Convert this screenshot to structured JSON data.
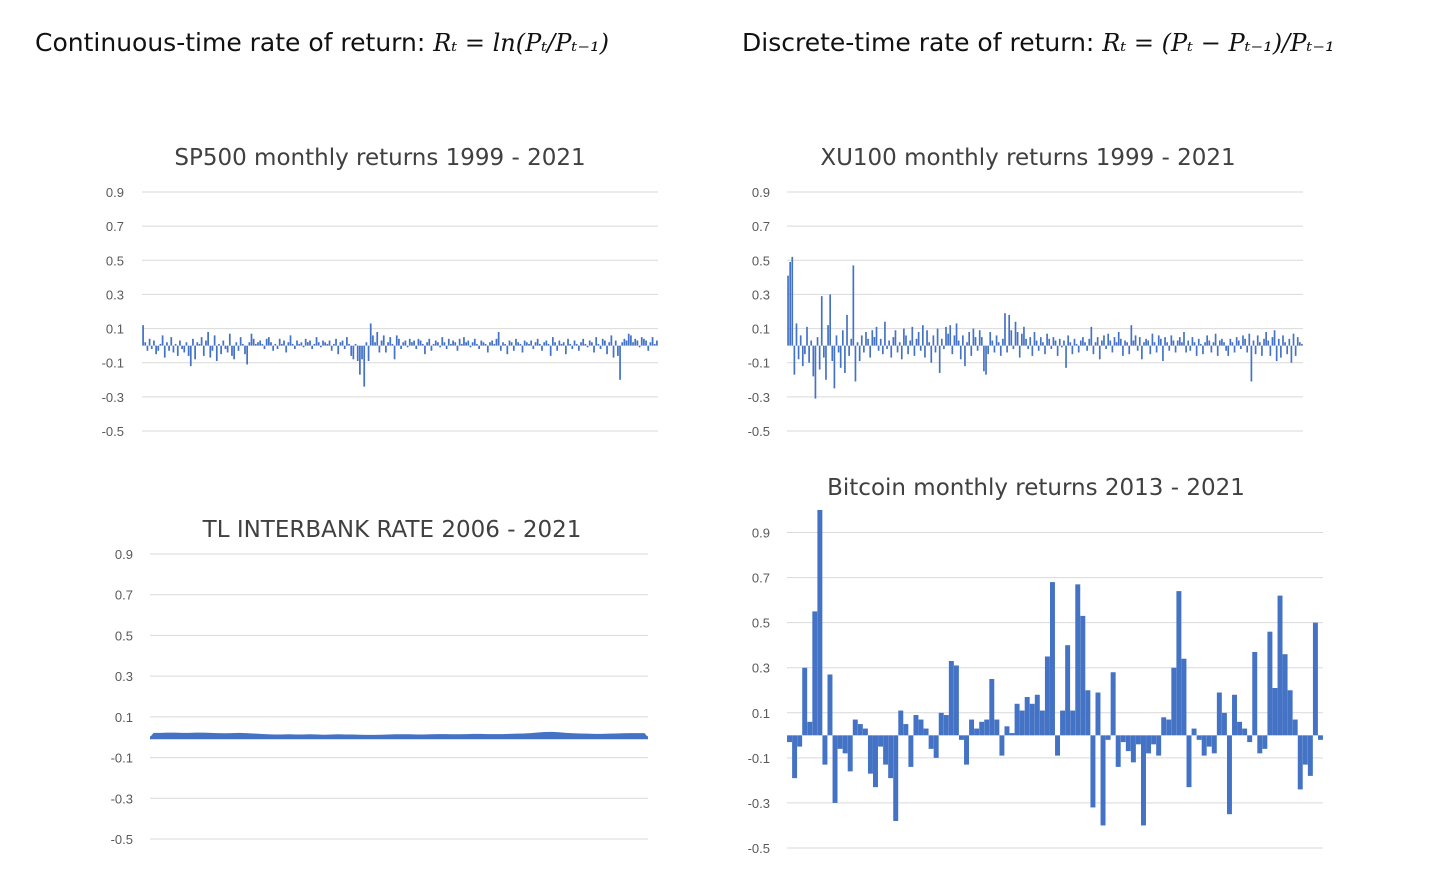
{
  "headings": {
    "left_label": "Continuous-time rate of return:",
    "left_formula": "Rₜ = ln(Pₜ/Pₜ₋₁)",
    "right_label": "Discrete-time rate of return:",
    "right_formula": "Rₜ = (Pₜ − Pₜ₋₁)/Pₜ₋₁"
  },
  "colors": {
    "bar": "#4472c4",
    "grid": "#d9d9d9",
    "title": "#404040",
    "tick": "#595959"
  },
  "chart_data": [
    {
      "id": "sp500",
      "type": "bar",
      "title": "SP500 monthly returns 1999 - 2021",
      "xlabel": "",
      "ylabel": "",
      "ylim": [
        -0.5,
        0.9
      ],
      "yticks": [
        0.9,
        0.7,
        0.5,
        0.3,
        0.1,
        -0.1,
        -0.3,
        -0.5
      ],
      "grid": true,
      "legend": "none",
      "values": [
        0.12,
        0.02,
        -0.03,
        0.04,
        -0.02,
        0.03,
        -0.05,
        -0.03,
        0.01,
        0.06,
        -0.07,
        0.02,
        -0.03,
        0.05,
        -0.04,
        0.01,
        -0.06,
        0.03,
        -0.02,
        -0.04,
        0.02,
        -0.06,
        -0.12,
        0.04,
        -0.08,
        0.02,
        0.01,
        0.05,
        -0.06,
        0.03,
        0.08,
        -0.07,
        -0.03,
        0.06,
        -0.09,
        0.01,
        -0.05,
        0.03,
        -0.02,
        -0.04,
        0.07,
        -0.06,
        -0.08,
        0.02,
        -0.03,
        0.05,
        0.01,
        -0.05,
        -0.11,
        0.02,
        0.07,
        0.04,
        0.01,
        0.02,
        0.03,
        0.01,
        -0.02,
        0.04,
        0.05,
        0.02,
        -0.03,
        0.01,
        -0.02,
        0.04,
        0.01,
        0.03,
        -0.04,
        0.02,
        0.06,
        0.01,
        -0.02,
        0.03,
        0.01,
        0.02,
        -0.01,
        0.04,
        0.02,
        0.03,
        -0.02,
        0.01,
        0.05,
        0.02,
        -0.01,
        0.03,
        0.02,
        0.01,
        0.03,
        -0.03,
        0.01,
        0.04,
        -0.05,
        0.02,
        0.03,
        -0.02,
        0.05,
        0.01,
        -0.06,
        -0.08,
        0.01,
        -0.09,
        -0.17,
        -0.08,
        -0.24,
        0.02,
        -0.09,
        0.13,
        0.06,
        0.02,
        0.08,
        -0.04,
        0.03,
        0.06,
        -0.04,
        0.02,
        0.05,
        0.01,
        -0.08,
        0.06,
        0.04,
        -0.02,
        0.02,
        0.03,
        -0.01,
        0.04,
        0.02,
        0.03,
        -0.02,
        0.04,
        0.03,
        0.01,
        -0.05,
        0.02,
        0.04,
        -0.03,
        0.01,
        0.03,
        0.02,
        -0.01,
        0.05,
        0.02,
        -0.02,
        0.04,
        0.01,
        0.03,
        0.02,
        -0.03,
        0.04,
        0.01,
        0.05,
        0.02,
        0.03,
        -0.01,
        0.02,
        0.04,
        0.01,
        -0.02,
        0.03,
        0.02,
        0.01,
        -0.04,
        0.02,
        0.03,
        0.01,
        0.04,
        0.08,
        -0.03,
        0.02,
        0.01,
        -0.05,
        0.03,
        0.02,
        -0.03,
        0.04,
        0.02,
        0.01,
        -0.04,
        0.03,
        0.02,
        0.01,
        0.03,
        -0.02,
        0.02,
        0.04,
        0.01,
        -0.03,
        0.02,
        0.03,
        0.01,
        -0.06,
        0.05,
        0.02,
        -0.03,
        0.03,
        0.01,
        0.02,
        -0.05,
        0.04,
        0.01,
        -0.02,
        0.03,
        0.01,
        -0.03,
        0.02,
        0.04,
        0.01,
        -0.01,
        0.03,
        0.02,
        -0.04,
        0.05,
        0.01,
        -0.02,
        0.04,
        0.03,
        -0.05,
        0.02,
        0.06,
        -0.07,
        0.03,
        -0.06,
        -0.2,
        0.02,
        0.04,
        0.03,
        0.07,
        0.06,
        0.02,
        0.04,
        0.03,
        -0.01,
        0.05,
        0.04,
        0.03,
        -0.03,
        0.02,
        0.05,
        0.01,
        0.03
      ]
    },
    {
      "id": "xu100",
      "type": "bar",
      "title": "XU100 monthly returns 1999 - 2021",
      "xlabel": "",
      "ylabel": "",
      "ylim": [
        -0.5,
        0.9
      ],
      "yticks": [
        0.9,
        0.7,
        0.5,
        0.3,
        0.1,
        -0.1,
        -0.3,
        -0.5
      ],
      "grid": true,
      "legend": "none",
      "values": [
        0.41,
        0.49,
        0.52,
        -0.17,
        0.13,
        -0.08,
        0.06,
        -0.12,
        -0.05,
        0.11,
        -0.1,
        0.03,
        -0.18,
        -0.31,
        0.05,
        -0.14,
        0.29,
        -0.07,
        -0.2,
        0.12,
        0.3,
        -0.09,
        -0.25,
        0.06,
        -0.04,
        -0.13,
        0.09,
        -0.16,
        0.18,
        -0.06,
        0.04,
        0.47,
        -0.21,
        0.02,
        -0.09,
        0.06,
        -0.04,
        0.08,
        0.04,
        -0.07,
        0.09,
        0.05,
        0.11,
        -0.03,
        0.04,
        -0.05,
        0.14,
        -0.02,
        0.03,
        -0.07,
        0.05,
        0.09,
        -0.04,
        0.02,
        -0.08,
        0.1,
        0.06,
        -0.05,
        0.03,
        0.11,
        -0.06,
        0.04,
        0.08,
        -0.03,
        0.12,
        -0.07,
        0.09,
        0.02,
        -0.1,
        0.06,
        -0.04,
        0.1,
        -0.16,
        0.04,
        -0.02,
        0.11,
        0.07,
        0.12,
        -0.05,
        0.06,
        0.13,
        0.03,
        -0.08,
        0.06,
        -0.12,
        0.02,
        0.08,
        -0.06,
        0.1,
        0.05,
        -0.03,
        0.09,
        0.05,
        -0.15,
        -0.17,
        -0.05,
        0.08,
        0.03,
        -0.04,
        0.06,
        0.02,
        -0.06,
        0.04,
        0.19,
        -0.04,
        0.18,
        0.09,
        -0.02,
        0.14,
        0.08,
        -0.07,
        0.07,
        0.11,
        0.04,
        -0.02,
        0.05,
        -0.06,
        0.08,
        0.03,
        -0.03,
        0.05,
        0.02,
        -0.05,
        0.07,
        0.04,
        -0.02,
        0.05,
        0.03,
        -0.06,
        0.04,
        -0.01,
        0.03,
        -0.13,
        0.06,
        0.02,
        -0.05,
        0.04,
        0.01,
        -0.04,
        0.03,
        0.05,
        0.02,
        -0.03,
        0.04,
        0.11,
        -0.05,
        0.02,
        0.05,
        -0.08,
        0.03,
        0.06,
        -0.02,
        0.07,
        0.03,
        -0.04,
        0.05,
        0.02,
        0.08,
        0.04,
        -0.06,
        0.03,
        0.02,
        -0.05,
        0.12,
        0.03,
        0.06,
        -0.03,
        0.05,
        -0.08,
        0.02,
        0.04,
        0.03,
        -0.05,
        0.07,
        0.02,
        -0.04,
        0.06,
        0.04,
        -0.09,
        0.05,
        0.02,
        -0.03,
        0.06,
        0.03,
        -0.04,
        0.03,
        0.05,
        0.02,
        0.08,
        -0.04,
        0.03,
        -0.03,
        0.05,
        0.02,
        -0.06,
        0.04,
        0.01,
        -0.05,
        0.02,
        0.06,
        0.03,
        -0.04,
        0.02,
        0.07,
        -0.06,
        0.03,
        0.04,
        0.02,
        -0.03,
        -0.06,
        0.04,
        0.02,
        -0.04,
        0.05,
        0.03,
        -0.02,
        0.06,
        0.04,
        -0.04,
        0.07,
        -0.21,
        0.03,
        -0.05,
        0.06,
        0.02,
        -0.06,
        0.04,
        0.08,
        0.03,
        -0.06,
        0.05,
        0.09,
        -0.09,
        0.04,
        -0.07,
        0.06,
        0.02,
        -0.05,
        0.04,
        -0.1,
        0.07,
        -0.06,
        0.05,
        0.02,
        0.01
      ]
    },
    {
      "id": "tl-interbank",
      "type": "area",
      "title": "TL INTERBANK RATE 2006 - 2021",
      "xlabel": "",
      "ylabel": "",
      "ylim": [
        -0.5,
        0.9
      ],
      "yticks": [
        0.9,
        0.7,
        0.5,
        0.3,
        0.1,
        -0.1,
        -0.3,
        -0.5
      ],
      "grid": true,
      "legend": "none",
      "values": [
        0.014,
        0.014,
        0.015,
        0.015,
        0.014,
        0.014,
        0.015,
        0.015,
        0.014,
        0.013,
        0.012,
        0.013,
        0.014,
        0.013,
        0.011,
        0.009,
        0.007,
        0.006,
        0.006,
        0.007,
        0.006,
        0.006,
        0.007,
        0.006,
        0.005,
        0.006,
        0.007,
        0.006,
        0.006,
        0.005,
        0.004,
        0.004,
        0.005,
        0.006,
        0.007,
        0.007,
        0.007,
        0.006,
        0.006,
        0.007,
        0.008,
        0.008,
        0.007,
        0.007,
        0.008,
        0.009,
        0.009,
        0.008,
        0.008,
        0.008,
        0.009,
        0.01,
        0.011,
        0.013,
        0.016,
        0.018,
        0.019,
        0.017,
        0.014,
        0.012,
        0.011,
        0.01,
        0.009,
        0.009,
        0.01,
        0.011,
        0.012,
        0.013,
        0.013,
        0.013
      ]
    },
    {
      "id": "bitcoin",
      "type": "bar",
      "title": "Bitcoin monthly returns 2013 - 2021",
      "xlabel": "",
      "ylabel": "",
      "ylim": [
        -0.5,
        1.0
      ],
      "yticks": [
        0.9,
        0.7,
        0.5,
        0.3,
        0.1,
        -0.1,
        -0.3,
        -0.5
      ],
      "grid": true,
      "legend": "none",
      "values": [
        -0.03,
        -0.19,
        -0.05,
        0.3,
        0.06,
        0.55,
        1.0,
        -0.13,
        0.27,
        -0.3,
        -0.06,
        -0.08,
        -0.16,
        0.07,
        0.05,
        0.03,
        -0.17,
        -0.23,
        -0.05,
        -0.13,
        -0.19,
        -0.38,
        0.11,
        0.05,
        -0.14,
        0.09,
        0.07,
        0.03,
        -0.06,
        -0.1,
        0.1,
        0.09,
        0.33,
        0.31,
        -0.02,
        -0.13,
        0.07,
        0.03,
        0.06,
        0.07,
        0.25,
        0.07,
        -0.09,
        0.04,
        0.01,
        0.14,
        0.11,
        0.17,
        0.14,
        0.18,
        0.11,
        0.35,
        0.68,
        -0.09,
        0.11,
        0.4,
        0.11,
        0.67,
        0.53,
        0.2,
        -0.32,
        0.19,
        -0.4,
        -0.02,
        0.28,
        -0.14,
        -0.03,
        -0.07,
        -0.12,
        -0.04,
        -0.4,
        -0.08,
        -0.04,
        -0.09,
        0.08,
        0.07,
        0.3,
        0.64,
        0.34,
        -0.23,
        0.03,
        -0.02,
        -0.09,
        -0.05,
        -0.08,
        0.19,
        0.1,
        -0.35,
        0.18,
        0.06,
        0.03,
        -0.03,
        0.37,
        -0.08,
        -0.06,
        0.46,
        0.21,
        0.62,
        0.36,
        0.2,
        0.07,
        -0.24,
        -0.13,
        -0.18,
        0.5,
        -0.02
      ]
    }
  ]
}
